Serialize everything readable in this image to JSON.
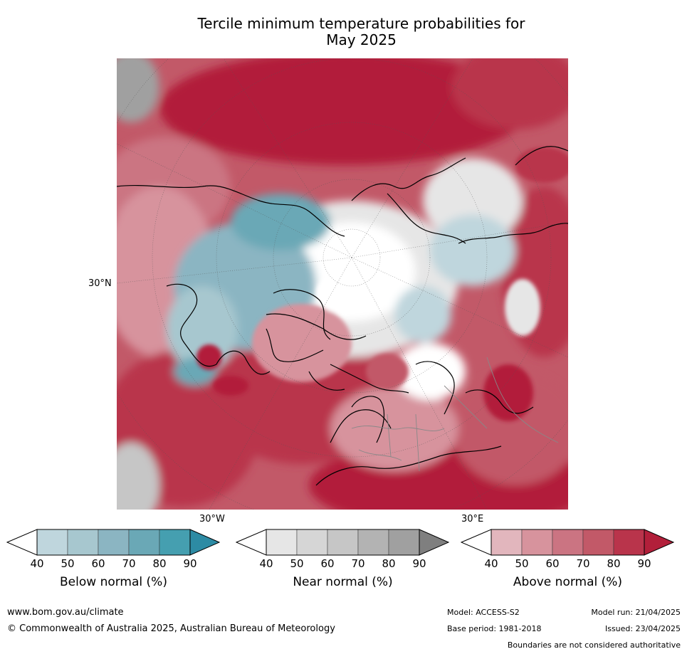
{
  "title_line1": "Tercile minimum temperature probabilities for",
  "title_line2": "May 2025",
  "map": {
    "lat_label": "30°N",
    "lon_label_left": "30°W",
    "lon_label_right": "30°E",
    "colors": {
      "below": [
        "#ffffff",
        "#bfd6dd",
        "#a7c7cf",
        "#8bb5c2",
        "#6aa8b6",
        "#459fb0",
        "#2d8ba4"
      ],
      "near": [
        "#ffffff",
        "#e6e6e6",
        "#d6d6d6",
        "#c6c6c6",
        "#b3b3b3",
        "#a0a0a0",
        "#7f7f7f"
      ],
      "above": [
        "#ffffff",
        "#e2b6bd",
        "#d7939d",
        "#cb7482",
        "#c25968",
        "#b9344b",
        "#b21f3a"
      ]
    }
  },
  "colorbars": {
    "ticks": [
      "40",
      "50",
      "60",
      "70",
      "80",
      "90"
    ],
    "below_label": "Below normal (%)",
    "near_label": "Near normal (%)",
    "above_label": "Above normal (%)"
  },
  "footer": {
    "url": "www.bom.gov.au/climate",
    "copyright": "© Commonwealth of Australia 2025, Australian Bureau of Meteorology",
    "model": "Model: ACCESS-S2",
    "model_run": "Model run: 21/04/2025",
    "base_period": "Base period: 1981-2018",
    "issued": "Issued: 23/04/2025",
    "disclaimer": "Boundaries are not considered authoritative"
  }
}
